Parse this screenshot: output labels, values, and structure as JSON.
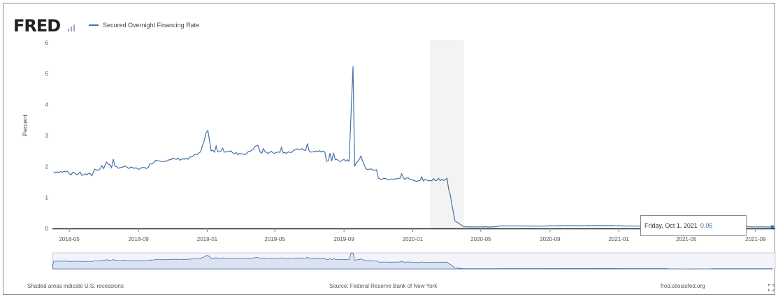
{
  "header": {
    "logo": "FRED",
    "legend_label": "Secured Overnight Financing Rate"
  },
  "footer": {
    "left": "Shaded areas indicate U.S. recessions",
    "center": "Source: Federal Reserve Bank of New York",
    "right": "fred.stlouisfed.org"
  },
  "tooltip": {
    "date": "Friday, Oct 1, 2021",
    "value": "0.05"
  },
  "colors": {
    "line": "#4572a7",
    "navigator_fill": "#dbe3f3",
    "navigator_line": "#4572a7",
    "recession_shade": "#e8e8e8"
  },
  "icons": {
    "logo_mark": "fred-chart-icon",
    "expand": "expand-icon"
  },
  "chart_data": {
    "type": "line",
    "title": "",
    "xlabel": "",
    "ylabel": "Percent",
    "ylim": [
      0,
      6
    ],
    "yticks": [
      "0",
      "1",
      "2",
      "3",
      "4",
      "5",
      "6"
    ],
    "xticks": [
      "2018-05",
      "2018-09",
      "2019-01",
      "2019-05",
      "2019-09",
      "2020-01",
      "2020-05",
      "2020-09",
      "2021-01",
      "2021-05",
      "2021-09"
    ],
    "grid": false,
    "legend_position": "top-left",
    "recession_shade": [
      "2020-02",
      "2020-04"
    ],
    "series": [
      {
        "name": "Secured Overnight Financing Rate",
        "points": [
          [
            "2018-04-03",
            1.83
          ],
          [
            "2018-05-01",
            1.76
          ],
          [
            "2018-05-20",
            1.74
          ],
          [
            "2018-06-10",
            1.72
          ],
          [
            "2018-06-15",
            1.9
          ],
          [
            "2018-07-01",
            1.94
          ],
          [
            "2018-07-06",
            2.15
          ],
          [
            "2018-07-15",
            1.98
          ],
          [
            "2018-08-15",
            1.94
          ],
          [
            "2018-09-15",
            1.97
          ],
          [
            "2018-10-01",
            2.2
          ],
          [
            "2018-11-01",
            2.24
          ],
          [
            "2018-12-01",
            2.28
          ],
          [
            "2018-12-20",
            2.44
          ],
          [
            "2019-01-02",
            3.15
          ],
          [
            "2019-01-08",
            2.5
          ],
          [
            "2019-02-15",
            2.42
          ],
          [
            "2019-03-15",
            2.45
          ],
          [
            "2019-04-01",
            2.7
          ],
          [
            "2019-04-05",
            2.45
          ],
          [
            "2019-05-01",
            2.45
          ],
          [
            "2019-06-03",
            2.55
          ],
          [
            "2019-07-01",
            2.5
          ],
          [
            "2019-08-01",
            2.2
          ],
          [
            "2019-09-10",
            2.2
          ],
          [
            "2019-09-17",
            5.25
          ],
          [
            "2019-09-20",
            2.0
          ],
          [
            "2019-10-01",
            2.35
          ],
          [
            "2019-10-10",
            1.9
          ],
          [
            "2019-11-01",
            1.6
          ],
          [
            "2020-01-02",
            1.55
          ],
          [
            "2020-02-01",
            1.58
          ],
          [
            "2020-03-02",
            1.62
          ],
          [
            "2020-03-05",
            1.25
          ],
          [
            "2020-03-16",
            0.25
          ],
          [
            "2020-04-01",
            0.05
          ],
          [
            "2020-06-01",
            0.08
          ],
          [
            "2020-09-01",
            0.09
          ],
          [
            "2021-01-04",
            0.08
          ],
          [
            "2021-04-01",
            0.01
          ],
          [
            "2021-06-15",
            0.05
          ],
          [
            "2021-10-01",
            0.05
          ]
        ]
      }
    ]
  }
}
